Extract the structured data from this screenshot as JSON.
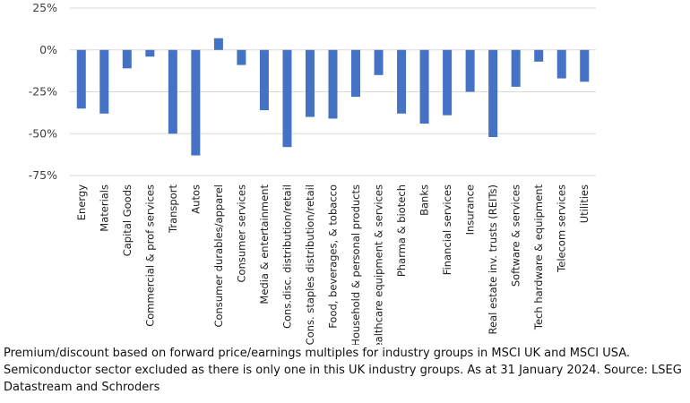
{
  "chart_data": {
    "type": "bar",
    "categories": [
      "Energy",
      "Materials",
      "Capital Goods",
      "Commercial & prof services",
      "Transport",
      "Autos",
      "Consumer durables/apparel",
      "Consumer services",
      "Media & entertainment",
      "Cons.disc. distribution/retail",
      "Cons. staples distribution/retail",
      "Food, beverages, & tobacco",
      "Household & personal products",
      "Healthcare equipment & services",
      "Pharma & biotech",
      "Banks",
      "Financial services",
      "Insurance",
      "Real estate inv. trusts (REITs)",
      "Software & services",
      "Tech hardware & equipment",
      "Telecom services",
      "Utilities"
    ],
    "values": [
      -35,
      -38,
      -11,
      -4,
      -50,
      -63,
      7,
      -9,
      -36,
      -58,
      -40,
      -41,
      -28,
      -15,
      -38,
      -44,
      -39,
      -25,
      -52,
      -22,
      -7,
      -17,
      -19
    ],
    "ylim": [
      -75,
      25
    ],
    "yticks": [
      25,
      0,
      -25,
      -50,
      -75
    ],
    "ytick_labels": [
      "25%",
      "0%",
      "-25%",
      "-50%",
      "-75%"
    ],
    "grid": true,
    "bar_color": "#4472C4",
    "title": "",
    "xlabel": "",
    "ylabel": ""
  },
  "caption": "Premium/discount based on forward price/earnings multiples for industry groups in MSCI UK and MSCI USA. Semiconductor sector excluded as there is only one in this UK industry groups. As at 31 January 2024. Source: LSEG Datastream and Schroders"
}
